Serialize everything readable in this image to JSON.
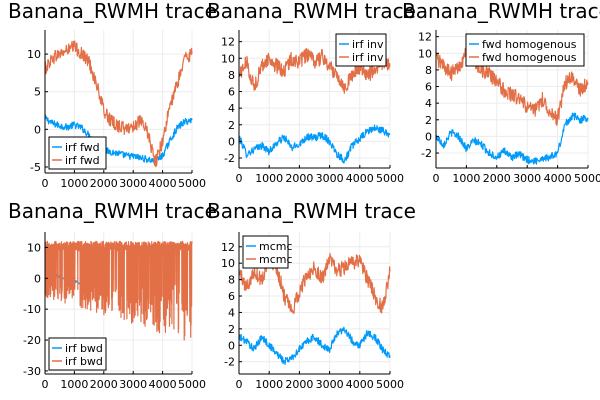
{
  "colors": {
    "series1": "#009AFA",
    "series2": "#E26F46",
    "grid": "#ececec",
    "axis": "#000000"
  },
  "chart_data": [
    {
      "type": "line",
      "title": "Banana_RWMH trace",
      "xlim": [
        0,
        5000
      ],
      "ylim": [
        -5.8,
        13.2
      ],
      "xticks": [
        0,
        1000,
        2000,
        3000,
        4000,
        5000
      ],
      "yticks": [
        -5,
        0,
        5,
        10
      ],
      "grid": true,
      "legend": "bottom-left",
      "series": [
        {
          "name": "irf fwd",
          "x": [
            0,
            250,
            500,
            750,
            1000,
            1250,
            1500,
            1750,
            2000,
            2250,
            2500,
            2750,
            3000,
            3250,
            3500,
            3750,
            4000,
            4250,
            4500,
            4750,
            5000
          ],
          "y": [
            1.5,
            0.8,
            0.5,
            0.3,
            0.6,
            0.2,
            -0.8,
            -2.0,
            -2.8,
            -3.0,
            -3.2,
            -3.5,
            -3.6,
            -3.8,
            -4.0,
            -4.3,
            -3.5,
            -1.5,
            0.2,
            1.0,
            1.2
          ]
        },
        {
          "name": "irf fwd",
          "x": [
            0,
            250,
            500,
            750,
            1000,
            1250,
            1500,
            1750,
            2000,
            2250,
            2500,
            2750,
            3000,
            3250,
            3500,
            3750,
            4000,
            4250,
            4500,
            4750,
            5000
          ],
          "y": [
            8.0,
            9.5,
            10.0,
            10.5,
            11.0,
            10.0,
            9.0,
            6.0,
            2.5,
            1.0,
            0.5,
            0.0,
            0.5,
            1.0,
            -0.5,
            -4.5,
            -1.5,
            3.0,
            6.0,
            9.5,
            10.0
          ]
        }
      ]
    },
    {
      "type": "line",
      "title": "Banana_RWMH trace",
      "xlim": [
        0,
        5000
      ],
      "ylim": [
        -3.2,
        13.4
      ],
      "xticks": [
        0,
        1000,
        2000,
        3000,
        4000,
        5000
      ],
      "yticks": [
        -2,
        0,
        2,
        4,
        6,
        8,
        10,
        12
      ],
      "grid": true,
      "legend": "top-right",
      "series": [
        {
          "name": "irf inv",
          "x": [
            0,
            250,
            500,
            750,
            1000,
            1250,
            1500,
            1750,
            2000,
            2250,
            2500,
            2750,
            3000,
            3250,
            3500,
            3750,
            4000,
            4250,
            4500,
            4750,
            5000
          ],
          "y": [
            0.5,
            -1.5,
            -1.0,
            -0.5,
            -1.2,
            -0.2,
            0.5,
            -0.8,
            -0.3,
            0.6,
            0.4,
            0.8,
            0.0,
            -1.5,
            -2.3,
            -0.5,
            0.3,
            1.2,
            1.6,
            1.3,
            0.8
          ]
        },
        {
          "name": "irf inv",
          "x": [
            0,
            250,
            500,
            750,
            1000,
            1250,
            1500,
            1750,
            2000,
            2250,
            2500,
            2750,
            3000,
            3250,
            3500,
            3750,
            4000,
            4250,
            4500,
            4750,
            5000
          ],
          "y": [
            8.0,
            9.5,
            6.5,
            9.0,
            10.0,
            9.0,
            8.5,
            10.0,
            9.5,
            10.5,
            9.5,
            10.2,
            9.0,
            8.0,
            6.5,
            8.0,
            9.0,
            8.0,
            8.5,
            9.5,
            9.0
          ]
        }
      ]
    },
    {
      "type": "line",
      "title": "Banana_RWMH trace",
      "xlim": [
        0,
        5000
      ],
      "ylim": [
        -3.8,
        12.8
      ],
      "xticks": [
        0,
        1000,
        2000,
        3000,
        4000,
        5000
      ],
      "yticks": [
        -2,
        0,
        2,
        4,
        6,
        8,
        10,
        12
      ],
      "grid": true,
      "legend": "top-right",
      "series": [
        {
          "name": "fwd homogenous",
          "x": [
            0,
            250,
            500,
            750,
            1000,
            1250,
            1500,
            1750,
            2000,
            2250,
            2500,
            2750,
            3000,
            3250,
            3500,
            3750,
            4000,
            4250,
            4500,
            4750,
            5000
          ],
          "y": [
            0.0,
            -1.0,
            0.5,
            0.0,
            -1.5,
            -0.5,
            -1.0,
            -2.0,
            -2.5,
            -1.8,
            -2.5,
            -2.2,
            -2.8,
            -3.0,
            -2.6,
            -2.5,
            -2.0,
            1.5,
            2.5,
            2.0,
            2.2
          ]
        },
        {
          "name": "fwd homogenous",
          "x": [
            0,
            250,
            500,
            750,
            1000,
            1250,
            1500,
            1750,
            2000,
            2250,
            2500,
            2750,
            3000,
            3250,
            3500,
            3750,
            4000,
            4250,
            4500,
            4750,
            5000
          ],
          "y": [
            9.5,
            8.5,
            7.5,
            8.5,
            10.0,
            9.0,
            8.0,
            7.5,
            6.5,
            5.5,
            5.0,
            4.5,
            3.5,
            3.0,
            4.5,
            3.0,
            2.0,
            6.5,
            7.0,
            5.5,
            6.5
          ]
        }
      ]
    },
    {
      "type": "line",
      "title": "Banana_RWMH trace",
      "xlim": [
        0,
        5000
      ],
      "ylim": [
        -31,
        15
      ],
      "xticks": [
        0,
        1000,
        2000,
        3000,
        4000,
        5000
      ],
      "yticks": [
        -30,
        -20,
        -10,
        0,
        10
      ],
      "grid": true,
      "legend": "bottom-left",
      "series": [
        {
          "name": "irf bwd",
          "x": [
            0,
            250,
            500,
            750,
            1000,
            1250,
            1500
          ],
          "y": [
            1.0,
            1.5,
            0.5,
            0.0,
            -1.0,
            -1.5,
            -2.5
          ]
        },
        {
          "name": "irf bwd",
          "x": [
            0,
            500,
            1000,
            1500,
            2000,
            2500,
            3000,
            3500,
            4000,
            4500,
            5000
          ],
          "y": [
            9.0,
            10.0,
            10.5,
            10.0,
            10.5,
            10.0,
            10.5,
            10.0,
            10.5,
            10.0,
            10.5
          ]
        }
      ]
    },
    {
      "type": "line",
      "title": "Banana_RWMH trace",
      "xlim": [
        0,
        5000
      ],
      "ylim": [
        -3.5,
        13.8
      ],
      "xticks": [
        0,
        1000,
        2000,
        3000,
        4000,
        5000
      ],
      "yticks": [
        -2,
        0,
        2,
        4,
        6,
        8,
        10,
        12
      ],
      "grid": true,
      "legend": "top-left",
      "series": [
        {
          "name": "mcmc",
          "x": [
            0,
            250,
            500,
            750,
            1000,
            1250,
            1500,
            1750,
            2000,
            2250,
            2500,
            2750,
            3000,
            3250,
            3500,
            3750,
            4000,
            4250,
            4500,
            4750,
            5000
          ],
          "y": [
            1.0,
            0.5,
            -0.5,
            1.0,
            0.0,
            -1.0,
            -2.0,
            -1.5,
            -0.5,
            0.5,
            1.0,
            0.0,
            -0.5,
            1.5,
            2.0,
            0.5,
            0.0,
            1.5,
            1.0,
            -0.5,
            -1.5
          ]
        },
        {
          "name": "mcmc",
          "x": [
            0,
            250,
            500,
            750,
            1000,
            1250,
            1500,
            1750,
            2000,
            2250,
            2500,
            2750,
            3000,
            3250,
            3500,
            3750,
            4000,
            4250,
            4500,
            4750,
            5000
          ],
          "y": [
            9.0,
            7.0,
            9.0,
            8.0,
            10.5,
            9.5,
            6.0,
            4.0,
            6.5,
            8.5,
            9.5,
            8.0,
            10.5,
            9.0,
            9.5,
            10.0,
            10.5,
            8.0,
            6.0,
            4.5,
            9.0
          ]
        }
      ]
    }
  ]
}
